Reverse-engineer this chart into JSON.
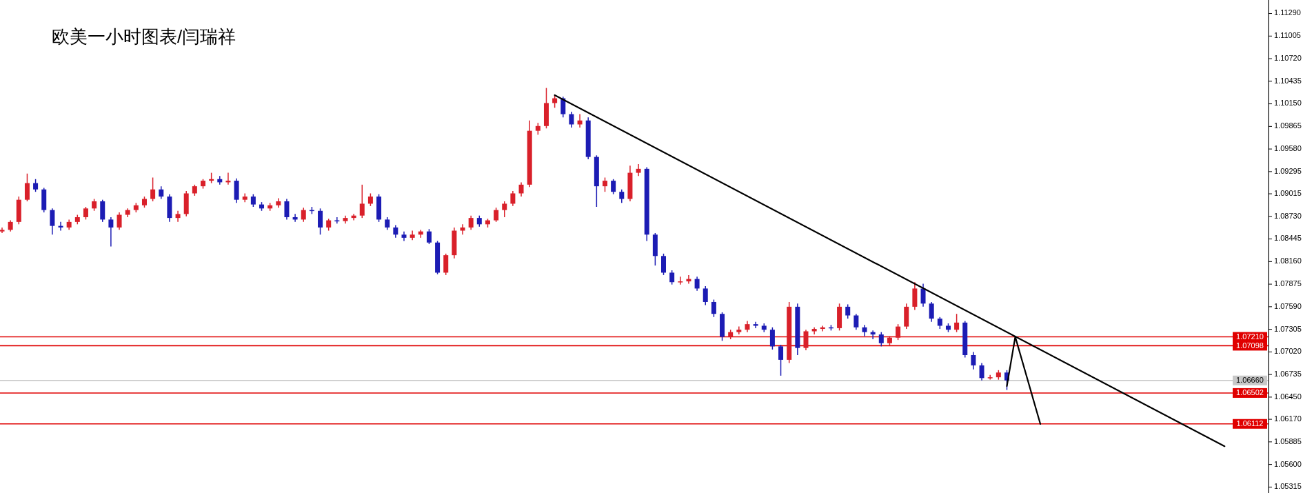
{
  "chart_data": {
    "type": "candlestick",
    "title": "欧美一小时图表/闫瑞祥",
    "categories": [
      null,
      null,
      null,
      null,
      null,
      null,
      null,
      null,
      null,
      null,
      null,
      null,
      null,
      null,
      null,
      null,
      null,
      null,
      null,
      null,
      null,
      null,
      null,
      null,
      null,
      null,
      null,
      null,
      null,
      null,
      null,
      null,
      null,
      null,
      null,
      null,
      null,
      null,
      null,
      null,
      null,
      null,
      null,
      null,
      null,
      null,
      null,
      null,
      null,
      null,
      null,
      null,
      null,
      null,
      null,
      null,
      null,
      null,
      null,
      null,
      null,
      null,
      null,
      null,
      null,
      null,
      null,
      null,
      null,
      null,
      null,
      null,
      null,
      null,
      null,
      null,
      null,
      null,
      null,
      null,
      null,
      null,
      null,
      null,
      null,
      null,
      null,
      null,
      null,
      null,
      null,
      null,
      null,
      null,
      null,
      null,
      null,
      null,
      null,
      null,
      null,
      null,
      null,
      null,
      null,
      null,
      null,
      null,
      null,
      null,
      null,
      null,
      null,
      null,
      null,
      null,
      null,
      null,
      null,
      null,
      null,
      null,
      null,
      null,
      null,
      null,
      null,
      null,
      null,
      null,
      null,
      null,
      null,
      null,
      null,
      null,
      null,
      null,
      null,
      null,
      null,
      null,
      null,
      null,
      null,
      null,
      null,
      null,
      null,
      null,
      null,
      null
    ],
    "ohlc": [
      [
        1.0854,
        1.0859,
        1.0852,
        1.0856
      ],
      [
        1.0856,
        1.0868,
        1.0854,
        1.0866
      ],
      [
        1.0866,
        1.0898,
        1.0863,
        1.0894
      ],
      [
        1.0894,
        1.0927,
        1.0892,
        1.0915
      ],
      [
        1.0915,
        1.092,
        1.0904,
        1.0907
      ],
      [
        1.0907,
        1.0909,
        1.0878,
        1.0881
      ],
      [
        1.0881,
        1.0883,
        1.085,
        1.0861
      ],
      [
        1.0861,
        1.0866,
        1.0855,
        1.0859
      ],
      [
        1.0859,
        1.0869,
        1.0856,
        1.0866
      ],
      [
        1.0866,
        1.0875,
        1.0863,
        1.0872
      ],
      [
        1.0872,
        1.0885,
        1.0869,
        1.0883
      ],
      [
        1.0883,
        1.0895,
        1.088,
        1.0892
      ],
      [
        1.0892,
        1.0894,
        1.0866,
        1.0869
      ],
      [
        1.0869,
        1.0872,
        1.0835,
        1.0859
      ],
      [
        1.0859,
        1.0878,
        1.0856,
        1.0875
      ],
      [
        1.0875,
        1.0883,
        1.0872,
        1.0881
      ],
      [
        1.0881,
        1.089,
        1.0878,
        1.0887
      ],
      [
        1.0887,
        1.0898,
        1.0884,
        1.0895
      ],
      [
        1.0895,
        1.0922,
        1.0892,
        1.0907
      ],
      [
        1.0907,
        1.0911,
        1.0895,
        1.0898
      ],
      [
        1.0898,
        1.0901,
        1.0866,
        1.0871
      ],
      [
        1.0871,
        1.088,
        1.0866,
        1.0876
      ],
      [
        1.0876,
        1.0905,
        1.0873,
        1.0902
      ],
      [
        1.0902,
        1.0913,
        1.0899,
        1.0911
      ],
      [
        1.0911,
        1.092,
        1.0908,
        1.0918
      ],
      [
        1.0918,
        1.0928,
        1.0915,
        1.092
      ],
      [
        1.092,
        1.0924,
        1.0913,
        1.0916
      ],
      [
        1.0916,
        1.0928,
        1.0913,
        1.0918
      ],
      [
        1.0918,
        1.0921,
        1.089,
        1.0894
      ],
      [
        1.0894,
        1.0902,
        1.0891,
        1.0898
      ],
      [
        1.0898,
        1.0901,
        1.0885,
        1.0888
      ],
      [
        1.0888,
        1.0891,
        1.088,
        1.0883
      ],
      [
        1.0883,
        1.089,
        1.088,
        1.0887
      ],
      [
        1.0887,
        1.0896,
        1.0884,
        1.0892
      ],
      [
        1.0892,
        1.0895,
        1.0869,
        1.0872
      ],
      [
        1.0872,
        1.0876,
        1.0866,
        1.0869
      ],
      [
        1.0869,
        1.0884,
        1.0866,
        1.0881
      ],
      [
        1.0881,
        1.0885,
        1.0876,
        1.088
      ],
      [
        1.088,
        1.0883,
        1.085,
        1.0859
      ],
      [
        1.0859,
        1.087,
        1.0855,
        1.0868
      ],
      [
        1.0868,
        1.0872,
        1.0864,
        1.0867
      ],
      [
        1.0867,
        1.0874,
        1.0864,
        1.0871
      ],
      [
        1.0871,
        1.0876,
        1.0868,
        1.0874
      ],
      [
        1.0874,
        1.0913,
        1.0871,
        1.0889
      ],
      [
        1.0889,
        1.0902,
        1.0886,
        1.0898
      ],
      [
        1.0898,
        1.0901,
        1.0866,
        1.0869
      ],
      [
        1.0869,
        1.0872,
        1.0856,
        1.0859
      ],
      [
        1.0859,
        1.0862,
        1.0846,
        1.085
      ],
      [
        1.085,
        1.0854,
        1.0842,
        1.0846
      ],
      [
        1.0846,
        1.0855,
        1.0843,
        1.085
      ],
      [
        1.085,
        1.0856,
        1.0846,
        1.0854
      ],
      [
        1.0854,
        1.0857,
        1.0838,
        1.084
      ],
      [
        1.084,
        1.0842,
        1.08,
        1.0802
      ],
      [
        1.0802,
        1.0826,
        1.0799,
        1.0824
      ],
      [
        1.0824,
        1.0859,
        1.082,
        1.0855
      ],
      [
        1.0855,
        1.0863,
        1.085,
        1.0859
      ],
      [
        1.0859,
        1.0874,
        1.0856,
        1.0871
      ],
      [
        1.0871,
        1.0874,
        1.086,
        1.0863
      ],
      [
        1.0863,
        1.087,
        1.0859,
        1.0868
      ],
      [
        1.0868,
        1.0884,
        1.0866,
        1.0881
      ],
      [
        1.0881,
        1.0892,
        1.0872,
        1.0889
      ],
      [
        1.0889,
        1.0905,
        1.0886,
        1.0902
      ],
      [
        1.0902,
        1.0916,
        1.0898,
        1.0913
      ],
      [
        1.0913,
        1.0994,
        1.091,
        1.0981
      ],
      [
        1.0981,
        1.0991,
        1.0976,
        1.0987
      ],
      [
        1.0987,
        1.1035,
        1.0984,
        1.1016
      ],
      [
        1.1016,
        1.1026,
        1.101,
        1.1022
      ],
      [
        1.1022,
        1.1024,
        1.0998,
        1.1002
      ],
      [
        1.1002,
        1.1005,
        1.0985,
        1.0989
      ],
      [
        1.0989,
        1.1002,
        1.0985,
        1.0994
      ],
      [
        1.0994,
        1.0998,
        1.0945,
        1.0948
      ],
      [
        1.0948,
        1.095,
        1.0885,
        1.0911
      ],
      [
        1.0911,
        1.0922,
        1.0904,
        1.0918
      ],
      [
        1.0918,
        1.092,
        1.0901,
        1.0904
      ],
      [
        1.0904,
        1.0907,
        1.089,
        1.0895
      ],
      [
        1.0895,
        1.0937,
        1.0892,
        1.0928
      ],
      [
        1.0928,
        1.0939,
        1.0924,
        1.0933
      ],
      [
        1.0933,
        1.0935,
        1.0842,
        1.085
      ],
      [
        1.085,
        1.0852,
        1.0811,
        1.0823
      ],
      [
        1.0823,
        1.0826,
        1.0799,
        1.0802
      ],
      [
        1.0802,
        1.0805,
        1.0787,
        1.079
      ],
      [
        1.079,
        1.0797,
        1.0787,
        1.0791
      ],
      [
        1.0791,
        1.0799,
        1.0788,
        1.0794
      ],
      [
        1.0794,
        1.0797,
        1.0779,
        1.0782
      ],
      [
        1.0782,
        1.0785,
        1.0761,
        1.0765
      ],
      [
        1.0765,
        1.0768,
        1.0746,
        1.075
      ],
      [
        1.075,
        1.0752,
        1.0716,
        1.0721
      ],
      [
        1.0721,
        1.073,
        1.0718,
        1.0727
      ],
      [
        1.0727,
        1.0734,
        1.0724,
        1.073
      ],
      [
        1.073,
        1.0741,
        1.0727,
        1.0737
      ],
      [
        1.0737,
        1.074,
        1.0732,
        1.0735
      ],
      [
        1.0735,
        1.0738,
        1.0727,
        1.073
      ],
      [
        1.073,
        1.0733,
        1.0705,
        1.0709
      ],
      [
        1.0709,
        1.0711,
        1.0672,
        1.0692
      ],
      [
        1.0692,
        1.0765,
        1.0688,
        1.0759
      ],
      [
        1.0759,
        1.0763,
        1.0698,
        1.0707
      ],
      [
        1.0707,
        1.073,
        1.0704,
        1.0728
      ],
      [
        1.0728,
        1.0733,
        1.0724,
        1.0731
      ],
      [
        1.0731,
        1.0735,
        1.0728,
        1.0733
      ],
      [
        1.0733,
        1.0736,
        1.0729,
        1.0732
      ],
      [
        1.0732,
        1.0763,
        1.0729,
        1.0759
      ],
      [
        1.0759,
        1.0762,
        1.0744,
        1.0748
      ],
      [
        1.0748,
        1.075,
        1.073,
        1.0733
      ],
      [
        1.0733,
        1.0736,
        1.0722,
        1.0727
      ],
      [
        1.0727,
        1.0729,
        1.0718,
        1.0724
      ],
      [
        1.0724,
        1.0727,
        1.0709,
        1.0713
      ],
      [
        1.0713,
        1.0722,
        1.071,
        1.072
      ],
      [
        1.072,
        1.0737,
        1.0717,
        1.0734
      ],
      [
        1.0734,
        1.0763,
        1.0731,
        1.0759
      ],
      [
        1.0759,
        1.079,
        1.0755,
        1.0782
      ],
      [
        1.0782,
        1.0788,
        1.0759,
        1.0763
      ],
      [
        1.0763,
        1.0765,
        1.074,
        1.0744
      ],
      [
        1.0744,
        1.0746,
        1.0731,
        1.0735
      ],
      [
        1.0735,
        1.0738,
        1.0727,
        1.073
      ],
      [
        1.073,
        1.075,
        1.0727,
        1.0739
      ],
      [
        1.0739,
        1.0741,
        1.0695,
        1.0698
      ],
      [
        1.0698,
        1.0702,
        1.068,
        1.0685
      ],
      [
        1.0685,
        1.0688,
        1.0666,
        1.0669
      ],
      [
        1.0669,
        1.0673,
        1.0667,
        1.067
      ],
      [
        1.067,
        1.0679,
        1.0667,
        1.0676
      ],
      [
        1.0676,
        1.0679,
        1.0654,
        1.0666
      ],
      null,
      null,
      null,
      null,
      null,
      null,
      null,
      null,
      null,
      null,
      null,
      null,
      null,
      null,
      null,
      null,
      null,
      null,
      null,
      null,
      null,
      null,
      null,
      null,
      null,
      null,
      null,
      null,
      null,
      null,
      null
    ],
    "colors": [
      "#d9202a",
      "#d9202a",
      "#d9202a",
      "#d9202a",
      "#1c1cb4",
      "#1c1cb4",
      "#1c1cb4",
      "#1c1cb4",
      "#d9202a",
      "#d9202a",
      "#d9202a",
      "#d9202a",
      "#1c1cb4",
      "#1c1cb4",
      "#d9202a",
      "#d9202a",
      "#d9202a",
      "#d9202a",
      "#d9202a",
      "#1c1cb4",
      "#1c1cb4",
      "#d9202a",
      "#d9202a",
      "#d9202a",
      "#d9202a",
      "#d9202a",
      "#1c1cb4",
      "#d9202a",
      "#1c1cb4",
      "#d9202a",
      "#1c1cb4",
      "#1c1cb4",
      "#d9202a",
      "#d9202a",
      "#1c1cb4",
      "#1c1cb4",
      "#d9202a",
      "#1c1cb4",
      "#1c1cb4",
      "#d9202a",
      "#1c1cb4",
      "#d9202a",
      "#d9202a",
      "#d9202a",
      "#d9202a",
      "#1c1cb4",
      "#1c1cb4",
      "#1c1cb4",
      "#1c1cb4",
      "#d9202a",
      "#d9202a",
      "#1c1cb4",
      "#1c1cb4",
      "#d9202a",
      "#d9202a",
      "#d9202a",
      "#d9202a",
      "#1c1cb4",
      "#d9202a",
      "#d9202a",
      "#d9202a",
      "#d9202a",
      "#d9202a",
      "#d9202a",
      "#d9202a",
      "#d9202a",
      "#d9202a",
      "#1c1cb4",
      "#1c1cb4",
      "#d9202a",
      "#1c1cb4",
      "#1c1cb4",
      "#d9202a",
      "#1c1cb4",
      "#1c1cb4",
      "#d9202a",
      "#d9202a",
      "#1c1cb4",
      "#1c1cb4",
      "#1c1cb4",
      "#1c1cb4",
      "#d9202a",
      "#d9202a",
      "#1c1cb4",
      "#1c1cb4",
      "#1c1cb4",
      "#1c1cb4",
      "#d9202a",
      "#d9202a",
      "#d9202a",
      "#1c1cb4",
      "#1c1cb4",
      "#1c1cb4",
      "#1c1cb4",
      "#d9202a",
      "#1c1cb4",
      "#d9202a",
      "#d9202a",
      "#d9202a",
      "#1c1cb4",
      "#d9202a",
      "#1c1cb4",
      "#1c1cb4",
      "#1c1cb4",
      "#1c1cb4",
      "#1c1cb4",
      "#d9202a",
      "#d9202a",
      "#d9202a",
      "#d9202a",
      "#1c1cb4",
      "#1c1cb4",
      "#1c1cb4",
      "#1c1cb4",
      "#d9202a",
      "#1c1cb4",
      "#1c1cb4",
      "#1c1cb4",
      "#d9202a",
      "#d9202a",
      "#1c1cb4",
      null,
      null,
      null,
      null,
      null,
      null,
      null,
      null,
      null,
      null,
      null,
      null,
      null,
      null,
      null,
      null,
      null,
      null,
      null,
      null,
      null,
      null,
      null,
      null,
      null,
      null,
      null,
      null,
      null,
      null,
      null
    ],
    "series": [
      {
        "type": "line",
        "color": "#000000",
        "values": [
          null,
          null,
          null,
          null,
          null,
          null,
          null,
          null,
          null,
          null,
          null,
          null,
          null,
          null,
          null,
          null,
          null,
          null,
          null,
          null,
          null,
          null,
          null,
          null,
          null,
          null,
          null,
          null,
          null,
          null,
          null,
          null,
          null,
          null,
          null,
          null,
          null,
          null,
          null,
          null,
          null,
          null,
          null,
          null,
          null,
          null,
          null,
          null,
          null,
          null,
          null,
          null,
          null,
          null,
          null,
          null,
          null,
          null,
          null,
          null,
          null,
          null,
          null,
          null,
          null,
          null,
          1.1026,
          null,
          null,
          null,
          null,
          null,
          null,
          null,
          null,
          null,
          null,
          null,
          null,
          null,
          null,
          null,
          null,
          null,
          null,
          null,
          null,
          null,
          null,
          null,
          null,
          null,
          null,
          null,
          null,
          null,
          null,
          null,
          null,
          null,
          null,
          null,
          null,
          null,
          null,
          null,
          null,
          null,
          null,
          null,
          null,
          null,
          null,
          null,
          null,
          null,
          null,
          null,
          null,
          null,
          null,
          null,
          null,
          null,
          null,
          null,
          null,
          null,
          null,
          null,
          null,
          null,
          null,
          null,
          null,
          null,
          null,
          null,
          null,
          null,
          null,
          null,
          null,
          null,
          null,
          null,
          1.0583,
          null,
          null,
          null,
          null,
          null
        ]
      },
      {
        "type": "line",
        "color": "#000000",
        "values": [
          null,
          null,
          null,
          null,
          null,
          null,
          null,
          null,
          null,
          null,
          null,
          null,
          null,
          null,
          null,
          null,
          null,
          null,
          null,
          null,
          null,
          null,
          null,
          null,
          null,
          null,
          null,
          null,
          null,
          null,
          null,
          null,
          null,
          null,
          null,
          null,
          null,
          null,
          null,
          null,
          null,
          null,
          null,
          null,
          null,
          null,
          null,
          null,
          null,
          null,
          null,
          null,
          null,
          null,
          null,
          null,
          null,
          null,
          null,
          null,
          null,
          null,
          null,
          null,
          null,
          null,
          null,
          null,
          null,
          null,
          null,
          null,
          null,
          null,
          null,
          null,
          null,
          null,
          null,
          null,
          null,
          null,
          null,
          null,
          null,
          null,
          null,
          null,
          null,
          null,
          null,
          null,
          null,
          null,
          null,
          null,
          null,
          null,
          null,
          null,
          null,
          null,
          null,
          null,
          null,
          null,
          null,
          null,
          null,
          null,
          null,
          null,
          null,
          null,
          null,
          null,
          null,
          null,
          null,
          null,
          1.0659,
          1.0721,
          null,
          null,
          1.0611,
          null,
          null,
          null,
          null,
          null,
          null,
          null,
          null,
          null,
          null,
          null,
          null,
          null,
          null,
          null,
          null,
          null,
          null,
          null,
          null,
          null,
          null,
          null,
          null,
          null,
          null,
          null
        ]
      }
    ],
    "ylim": [
      1.0524,
      1.1146
    ],
    "yticks": [
      {
        "value": 1.1129,
        "label": "1.11290"
      },
      1.11005,
      {
        "value": 1.1072,
        "label": "1.10720"
      },
      1.10435,
      {
        "value": 1.1015,
        "label": "1.10150"
      },
      1.09865,
      {
        "value": 1.0958,
        "label": "1.09580"
      },
      1.09295,
      1.09015,
      {
        "value": 1.0873,
        "label": "1.08730"
      },
      1.08445,
      {
        "value": 1.0816,
        "label": "1.08160"
      },
      1.07875,
      {
        "value": 1.0759,
        "label": "1.07590"
      },
      1.07305,
      {
        "value": 1.0702,
        "label": "1.07020"
      },
      1.06735,
      {
        "value": 1.0645,
        "label": "1.06450"
      },
      {
        "value": 1.0617,
        "label": "1.06170"
      },
      1.05885,
      {
        "value": 1.056,
        "label": "1.05600"
      },
      1.05315
    ],
    "ref_lines": [
      {
        "axis": "y",
        "value": 1.0721,
        "label": "1.07210",
        "color": "#e00000"
      },
      {
        "axis": "y",
        "value": 1.07098,
        "label": "1.07098",
        "color": "#e00000"
      },
      {
        "axis": "y",
        "value": 1.0666,
        "label": "1.06660",
        "color": "#c8c8c8"
      },
      {
        "axis": "y",
        "value": 1.06502,
        "label": "1.06502",
        "color": "#e00000"
      },
      {
        "axis": "y",
        "value": 1.06112,
        "label": "1.06112",
        "color": "#e00000"
      }
    ],
    "tick_labels": "y"
  }
}
